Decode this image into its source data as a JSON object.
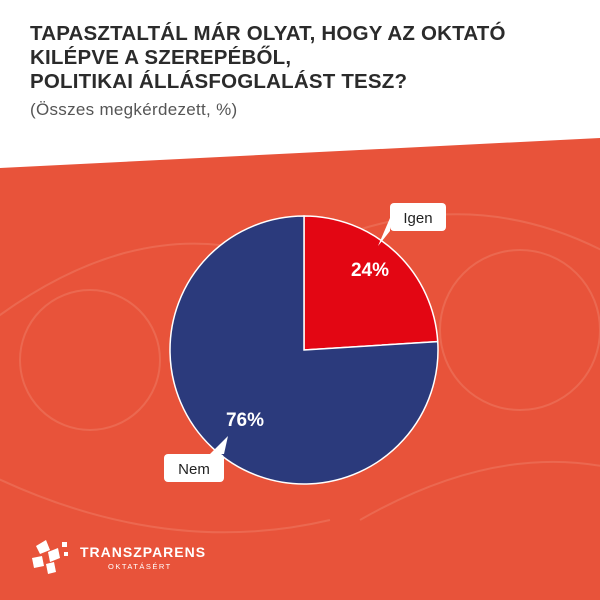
{
  "header": {
    "title_lines": [
      "TAPASZTALTÁL MÁR OLYAT, HOGY AZ OKTATÓ",
      "KILÉPVE A SZEREPÉBŐL,",
      "POLITIKAI ÁLLÁSFOGLALÁST TESZ?"
    ],
    "subtitle": "(Összes megkérdezett, %)"
  },
  "colors": {
    "background": "#e8533a",
    "header_bg": "#ffffff",
    "igen": "#e30613",
    "nem": "#2b3a7c"
  },
  "chart_data": {
    "type": "pie",
    "title": "TAPASZTALTÁL MÁR OLYAT, HOGY AZ OKTATÓ KILÉPVE A SZEREPÉBŐL, POLITIKAI ÁLLÁSFOGLALÁST TESZ?",
    "subtitle": "(Összes megkérdezett, %)",
    "slices": [
      {
        "label": "Igen",
        "value": 24,
        "value_label": "24%",
        "color": "#e30613"
      },
      {
        "label": "Nem",
        "value": 76,
        "value_label": "76%",
        "color": "#2b3a7c"
      }
    ]
  },
  "logo": {
    "name": "TRANSZPARENS",
    "tagline": "OKTATÁSÉRT"
  }
}
